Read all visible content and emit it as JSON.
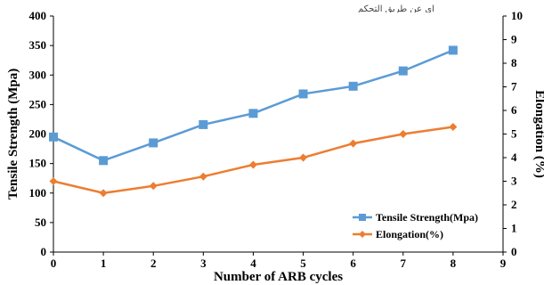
{
  "corner_text": "اي عن طريق التحكم",
  "chart_data": {
    "type": "line",
    "x": [
      0,
      1,
      2,
      3,
      4,
      5,
      6,
      7,
      8
    ],
    "xlim": [
      0,
      9
    ],
    "xticks": [
      "0",
      "1",
      "2",
      "3",
      "4",
      "5",
      "6",
      "7",
      "8",
      "9"
    ],
    "xlabel": "Number of ARB cycles",
    "ylabel_left": "Tensile Strength (Mpa)",
    "ylim_left": [
      0,
      400
    ],
    "yticks_left": [
      "0",
      "50",
      "100",
      "150",
      "200",
      "250",
      "300",
      "350",
      "400"
    ],
    "ylabel_right": "Elongation (%)",
    "ylim_right": [
      0,
      10
    ],
    "yticks_right": [
      "0",
      "1",
      "2",
      "3",
      "4",
      "5",
      "6",
      "7",
      "8",
      "9",
      "10"
    ],
    "grid": false,
    "legend_position": "bottom-right",
    "series": [
      {
        "name": "Tensile Strength(Mpa)",
        "axis": "left",
        "marker": "square",
        "color": "#5b9bd5",
        "values": [
          195,
          155,
          185,
          216,
          235,
          268,
          281,
          307,
          342
        ]
      },
      {
        "name": "Elongation(%)",
        "axis": "right",
        "marker": "diamond",
        "color": "#ed7d31",
        "values": [
          3.0,
          2.5,
          2.8,
          3.2,
          3.7,
          4.0,
          4.6,
          5.0,
          5.3
        ]
      }
    ]
  }
}
